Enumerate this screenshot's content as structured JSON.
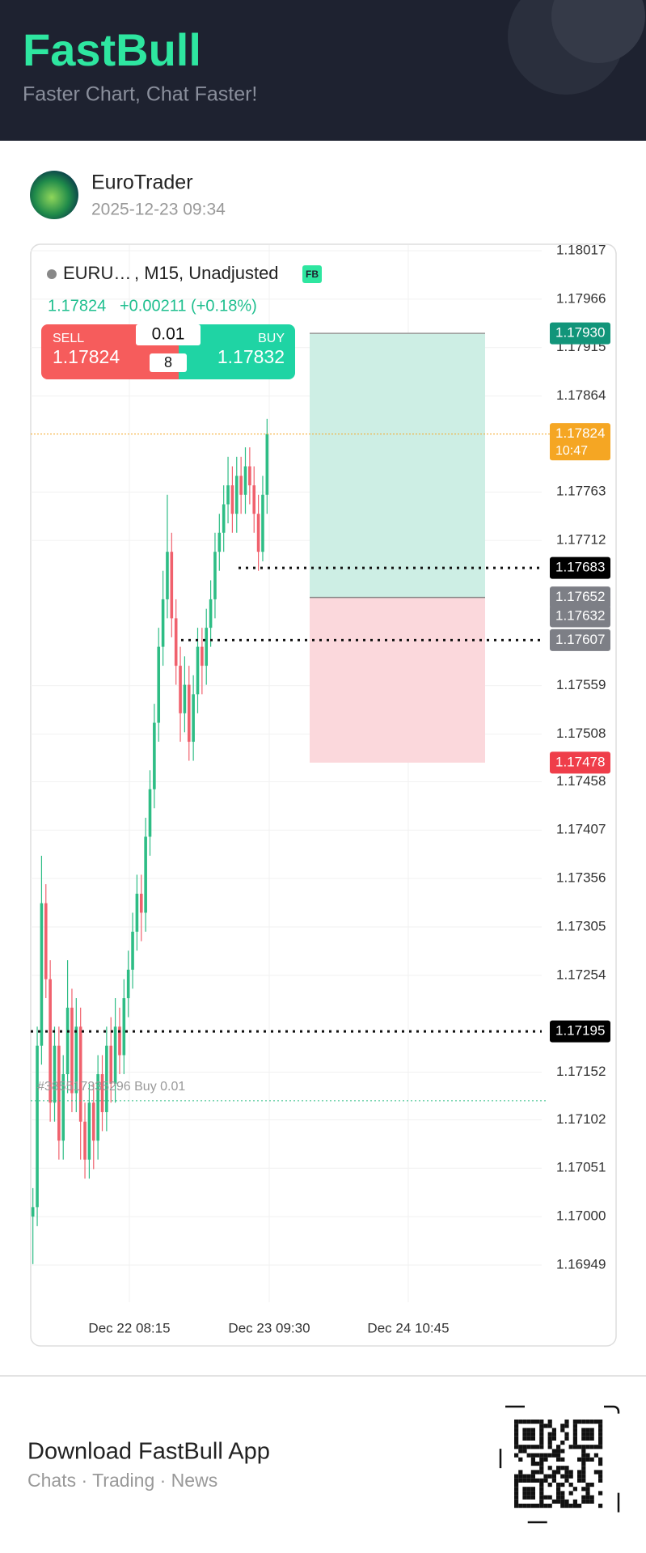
{
  "header": {
    "brand": "FastBull",
    "tagline": "Faster Chart, Chat Faster!"
  },
  "post": {
    "user": "EuroTrader",
    "date": "2025-12-23 09:34"
  },
  "chart": {
    "type": "candlestick",
    "symbol": "EURU…",
    "settings": ", M15, Unadjusted",
    "badge": "FB",
    "last": "1.17824",
    "change": "+0.00211 (+0.18%)",
    "trade": {
      "sell_label": "SELL",
      "sell_price": "1.17824",
      "buy_label": "BUY",
      "buy_price": "1.17832",
      "lot": "0.01",
      "spread": "8"
    },
    "ylim": [
      1.16949,
      1.18017
    ],
    "yticks": [
      1.18017,
      1.17966,
      1.17915,
      1.17864,
      1.17763,
      1.17712,
      1.17559,
      1.17508,
      1.17458,
      1.17407,
      1.17356,
      1.17305,
      1.17254,
      1.17152,
      1.17102,
      1.17051,
      {
        "value": 1.17,
        "label": "1.17000"
      },
      1.16949
    ],
    "x_labels": [
      "Dec 22 08:15",
      "Dec 23 09:30",
      "Dec 24 10:45"
    ],
    "up_color": "#2ebd85",
    "down_color": "#f0616d",
    "candles": [
      [
        1.17,
        1.1703,
        1.1695,
        1.1701
      ],
      [
        1.1701,
        1.172,
        1.1699,
        1.1718
      ],
      [
        1.1718,
        1.1738,
        1.1716,
        1.1733
      ],
      [
        1.1733,
        1.1735,
        1.1723,
        1.1725
      ],
      [
        1.1725,
        1.1727,
        1.171,
        1.1712
      ],
      [
        1.1712,
        1.172,
        1.171,
        1.1718
      ],
      [
        1.1718,
        1.172,
        1.1706,
        1.1708
      ],
      [
        1.1708,
        1.1717,
        1.1706,
        1.1715
      ],
      [
        1.1715,
        1.1727,
        1.1713,
        1.1722
      ],
      [
        1.1722,
        1.1724,
        1.1711,
        1.1713
      ],
      [
        1.1713,
        1.1723,
        1.1711,
        1.172
      ],
      [
        1.172,
        1.1722,
        1.1706,
        1.171
      ],
      [
        1.171,
        1.1712,
        1.1704,
        1.1706
      ],
      [
        1.1706,
        1.1714,
        1.1704,
        1.1712
      ],
      [
        1.1712,
        1.1714,
        1.1705,
        1.1708
      ],
      [
        1.1708,
        1.1717,
        1.1706,
        1.1715
      ],
      [
        1.1715,
        1.1717,
        1.1709,
        1.1711
      ],
      [
        1.1711,
        1.172,
        1.1709,
        1.1718
      ],
      [
        1.1718,
        1.1721,
        1.1712,
        1.1714
      ],
      [
        1.1714,
        1.1723,
        1.1712,
        1.172
      ],
      [
        1.172,
        1.1722,
        1.1715,
        1.1717
      ],
      [
        1.1717,
        1.1725,
        1.1715,
        1.1723
      ],
      [
        1.1723,
        1.1728,
        1.1721,
        1.1726
      ],
      [
        1.1726,
        1.1732,
        1.1724,
        1.173
      ],
      [
        1.173,
        1.1736,
        1.1728,
        1.1734
      ],
      [
        1.1734,
        1.1736,
        1.1729,
        1.1732
      ],
      [
        1.1732,
        1.1742,
        1.173,
        1.174
      ],
      [
        1.174,
        1.1747,
        1.1738,
        1.1745
      ],
      [
        1.1745,
        1.1754,
        1.1743,
        1.1752
      ],
      [
        1.1752,
        1.1762,
        1.175,
        1.176
      ],
      [
        1.176,
        1.1768,
        1.1758,
        1.1765
      ],
      [
        1.1765,
        1.1776,
        1.1763,
        1.177
      ],
      [
        1.177,
        1.1772,
        1.1761,
        1.1763
      ],
      [
        1.1763,
        1.1765,
        1.1756,
        1.1758
      ],
      [
        1.1758,
        1.176,
        1.175,
        1.1753
      ],
      [
        1.1753,
        1.1759,
        1.1751,
        1.1756
      ],
      [
        1.1756,
        1.1758,
        1.1748,
        1.175
      ],
      [
        1.175,
        1.1757,
        1.1748,
        1.1755
      ],
      [
        1.1755,
        1.1762,
        1.1753,
        1.176
      ],
      [
        1.176,
        1.1762,
        1.1755,
        1.1758
      ],
      [
        1.1758,
        1.1764,
        1.1756,
        1.1762
      ],
      [
        1.1762,
        1.1767,
        1.176,
        1.1765
      ],
      [
        1.1765,
        1.1772,
        1.1763,
        1.177
      ],
      [
        1.177,
        1.1774,
        1.1768,
        1.1772
      ],
      [
        1.1772,
        1.1777,
        1.177,
        1.1775
      ],
      [
        1.1775,
        1.178,
        1.1773,
        1.1777
      ],
      [
        1.1777,
        1.1779,
        1.1772,
        1.1774
      ],
      [
        1.1774,
        1.178,
        1.1772,
        1.1778
      ],
      [
        1.1778,
        1.178,
        1.1774,
        1.1776
      ],
      [
        1.1776,
        1.1781,
        1.1774,
        1.1779
      ],
      [
        1.1779,
        1.1781,
        1.1775,
        1.1777
      ],
      [
        1.1777,
        1.1779,
        1.1772,
        1.1774
      ],
      [
        1.1774,
        1.1776,
        1.1768,
        1.177
      ],
      [
        1.177,
        1.1778,
        1.1769,
        1.1776
      ],
      [
        1.1776,
        1.1784,
        1.1774,
        1.17824
      ]
    ],
    "price_tags": [
      {
        "value": 1.1793,
        "label": "1.17930",
        "color": "#12957a"
      },
      {
        "value": 1.17824,
        "label": "1.17824",
        "sub": "10:47",
        "color": "#f5a623",
        "line": "orange"
      },
      {
        "value": 1.17683,
        "label": "1.17683",
        "color": "#000000",
        "line": "dotted"
      },
      {
        "value": 1.17652,
        "label": "1.17652",
        "color": "#7d7f86"
      },
      {
        "value": 1.17632,
        "label": "1.17632",
        "color": "#7d7f86"
      },
      {
        "value": 1.17607,
        "label": "1.17607",
        "color": "#7d7f86",
        "line": "dotted"
      },
      {
        "value": 1.17478,
        "label": "1.17478",
        "color": "#ef3e4a"
      },
      {
        "value": 1.17195,
        "label": "1.17195",
        "color": "#000000",
        "line": "dotted"
      }
    ],
    "order": {
      "label": "#385517335296 Buy 0.01",
      "price": 1.17122
    }
  },
  "footer": {
    "title": "Download FastBull App",
    "subtitle": "Chats · Trading · News"
  }
}
